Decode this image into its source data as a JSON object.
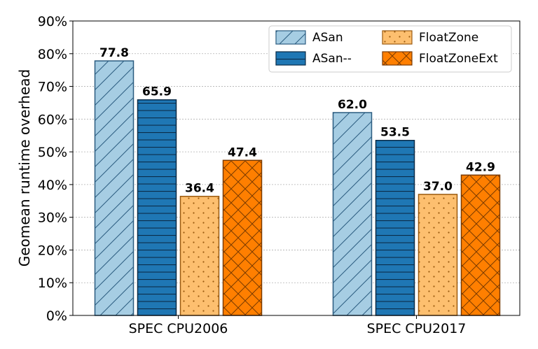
{
  "chart_data": {
    "type": "bar",
    "title": "",
    "xlabel": "",
    "ylabel": "Geomean runtime overhead",
    "ylim": [
      0,
      90
    ],
    "yticks": [
      0,
      10,
      20,
      30,
      40,
      50,
      60,
      70,
      80,
      90
    ],
    "ytick_suffix": "%",
    "grid": true,
    "legend_position": "top-right",
    "categories": [
      "SPEC CPU2006",
      "SPEC CPU2017"
    ],
    "series": [
      {
        "name": "ASan",
        "values": [
          77.8,
          62.0
        ],
        "labels": [
          "77.8",
          "62.0"
        ],
        "fill": "#a6cde3",
        "edge": "#2b5c80",
        "hatch": "diag"
      },
      {
        "name": "ASan--",
        "values": [
          65.9,
          53.5
        ],
        "labels": [
          "65.9",
          "53.5"
        ],
        "fill": "#1f77b4",
        "edge": "#0b2c48",
        "hatch": "horiz"
      },
      {
        "name": "FloatZone",
        "values": [
          36.4,
          37.0
        ],
        "labels": [
          "36.4",
          "37.0"
        ],
        "fill": "#fdbf6f",
        "edge": "#9a5a10",
        "hatch": "dots"
      },
      {
        "name": "FloatZoneExt",
        "values": [
          47.4,
          42.9
        ],
        "labels": [
          "47.4",
          "42.9"
        ],
        "fill": "#ff7f00",
        "edge": "#7a3a00",
        "hatch": "cross"
      }
    ]
  }
}
